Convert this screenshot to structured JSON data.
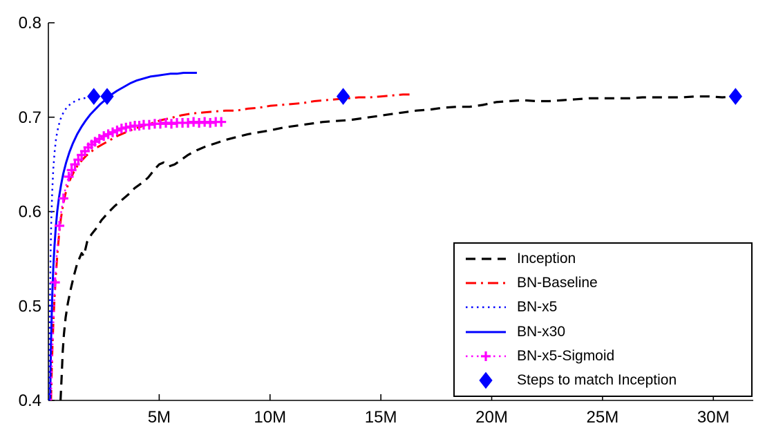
{
  "figure": {
    "background": "#ffffff",
    "axis_color": "#000000"
  },
  "chart_data": {
    "type": "line",
    "xlabel": "",
    "ylabel": "",
    "xlim": [
      0,
      31.8
    ],
    "ylim": [
      0.4,
      0.8
    ],
    "grid": false,
    "legend_position": "bottom-right",
    "x_ticks": [
      {
        "value": 5,
        "label": "5M"
      },
      {
        "value": 10,
        "label": "10M"
      },
      {
        "value": 15,
        "label": "15M"
      },
      {
        "value": 20,
        "label": "20M"
      },
      {
        "value": 25,
        "label": "25M"
      },
      {
        "value": 30,
        "label": "30M"
      }
    ],
    "y_ticks": [
      {
        "value": 0.4,
        "label": "0.4"
      },
      {
        "value": 0.5,
        "label": "0.5"
      },
      {
        "value": 0.6,
        "label": "0.6"
      },
      {
        "value": 0.7,
        "label": "0.7"
      },
      {
        "value": 0.8,
        "label": "0.8"
      }
    ],
    "series": [
      {
        "name": "Inception",
        "color": "#000000",
        "style": "dashed",
        "width": 3.2,
        "marker": "none",
        "points": [
          [
            0.55,
            0.4
          ],
          [
            0.6,
            0.425
          ],
          [
            0.65,
            0.452
          ],
          [
            0.7,
            0.47
          ],
          [
            0.78,
            0.488
          ],
          [
            0.88,
            0.503
          ],
          [
            1.0,
            0.517
          ],
          [
            1.15,
            0.532
          ],
          [
            1.3,
            0.545
          ],
          [
            1.5,
            0.556
          ],
          [
            1.6,
            0.553
          ],
          [
            1.75,
            0.568
          ],
          [
            1.95,
            0.576
          ],
          [
            2.15,
            0.582
          ],
          [
            2.4,
            0.591
          ],
          [
            2.7,
            0.599
          ],
          [
            3.0,
            0.606
          ],
          [
            3.3,
            0.612
          ],
          [
            3.6,
            0.618
          ],
          [
            3.9,
            0.625
          ],
          [
            4.2,
            0.63
          ],
          [
            4.5,
            0.636
          ],
          [
            4.8,
            0.645
          ],
          [
            5.0,
            0.65
          ],
          [
            5.2,
            0.652
          ],
          [
            5.45,
            0.648
          ],
          [
            5.7,
            0.65
          ],
          [
            6.0,
            0.655
          ],
          [
            6.3,
            0.66
          ],
          [
            6.7,
            0.665
          ],
          [
            7.1,
            0.669
          ],
          [
            7.5,
            0.672
          ],
          [
            8.0,
            0.676
          ],
          [
            8.5,
            0.679
          ],
          [
            9.0,
            0.682
          ],
          [
            9.5,
            0.684
          ],
          [
            10.0,
            0.686
          ],
          [
            10.6,
            0.689
          ],
          [
            11.2,
            0.691
          ],
          [
            11.8,
            0.693
          ],
          [
            12.4,
            0.695
          ],
          [
            13.0,
            0.696
          ],
          [
            13.6,
            0.697
          ],
          [
            14.2,
            0.699
          ],
          [
            14.8,
            0.701
          ],
          [
            15.4,
            0.703
          ],
          [
            16.0,
            0.705
          ],
          [
            16.6,
            0.707
          ],
          [
            17.2,
            0.708
          ],
          [
            17.8,
            0.71
          ],
          [
            18.4,
            0.711
          ],
          [
            19.0,
            0.711
          ],
          [
            19.6,
            0.713
          ],
          [
            20.2,
            0.716
          ],
          [
            20.8,
            0.717
          ],
          [
            21.4,
            0.718
          ],
          [
            22.0,
            0.717
          ],
          [
            22.6,
            0.717
          ],
          [
            23.2,
            0.718
          ],
          [
            23.8,
            0.719
          ],
          [
            24.4,
            0.72
          ],
          [
            25.0,
            0.72
          ],
          [
            25.6,
            0.72
          ],
          [
            26.2,
            0.72
          ],
          [
            26.8,
            0.721
          ],
          [
            27.4,
            0.721
          ],
          [
            28.0,
            0.721
          ],
          [
            28.6,
            0.721
          ],
          [
            29.2,
            0.722
          ],
          [
            29.8,
            0.722
          ],
          [
            30.4,
            0.721
          ],
          [
            31.0,
            0.722
          ],
          [
            31.5,
            0.722
          ]
        ]
      },
      {
        "name": "BN-Baseline",
        "color": "#ff0000",
        "style": "dashdot",
        "width": 3.0,
        "marker": "none",
        "points": [
          [
            0.12,
            0.4
          ],
          [
            0.15,
            0.43
          ],
          [
            0.18,
            0.455
          ],
          [
            0.22,
            0.48
          ],
          [
            0.27,
            0.505
          ],
          [
            0.33,
            0.53
          ],
          [
            0.4,
            0.553
          ],
          [
            0.48,
            0.575
          ],
          [
            0.56,
            0.592
          ],
          [
            0.65,
            0.605
          ],
          [
            0.75,
            0.617
          ],
          [
            0.85,
            0.626
          ],
          [
            1.0,
            0.635
          ],
          [
            1.15,
            0.642
          ],
          [
            1.3,
            0.648
          ],
          [
            1.5,
            0.654
          ],
          [
            1.7,
            0.659
          ],
          [
            1.9,
            0.663
          ],
          [
            2.2,
            0.668
          ],
          [
            2.5,
            0.672
          ],
          [
            2.8,
            0.676
          ],
          [
            3.1,
            0.68
          ],
          [
            3.5,
            0.684
          ],
          [
            3.9,
            0.688
          ],
          [
            4.3,
            0.691
          ],
          [
            4.7,
            0.694
          ],
          [
            5.1,
            0.697
          ],
          [
            5.5,
            0.699
          ],
          [
            6.0,
            0.702
          ],
          [
            6.5,
            0.704
          ],
          [
            7.0,
            0.705
          ],
          [
            7.5,
            0.706
          ],
          [
            8.0,
            0.707
          ],
          [
            8.5,
            0.707
          ],
          [
            9.0,
            0.709
          ],
          [
            9.5,
            0.71
          ],
          [
            10.0,
            0.712
          ],
          [
            10.5,
            0.713
          ],
          [
            11.0,
            0.714
          ],
          [
            11.5,
            0.715
          ],
          [
            12.0,
            0.717
          ],
          [
            12.5,
            0.718
          ],
          [
            13.0,
            0.719
          ],
          [
            13.5,
            0.72
          ],
          [
            14.0,
            0.721
          ],
          [
            14.5,
            0.721
          ],
          [
            15.0,
            0.722
          ],
          [
            15.5,
            0.723
          ],
          [
            16.0,
            0.724
          ],
          [
            16.4,
            0.724
          ]
        ]
      },
      {
        "name": "BN-x5",
        "color": "#0000ff",
        "style": "dotted",
        "width": 2.5,
        "marker": "none",
        "points": [
          [
            0.04,
            0.4
          ],
          [
            0.05,
            0.44
          ],
          [
            0.06,
            0.48
          ],
          [
            0.08,
            0.52
          ],
          [
            0.1,
            0.555
          ],
          [
            0.13,
            0.59
          ],
          [
            0.17,
            0.62
          ],
          [
            0.22,
            0.645
          ],
          [
            0.28,
            0.663
          ],
          [
            0.35,
            0.678
          ],
          [
            0.45,
            0.69
          ],
          [
            0.55,
            0.698
          ],
          [
            0.68,
            0.705
          ],
          [
            0.82,
            0.71
          ],
          [
            1.0,
            0.714
          ],
          [
            1.2,
            0.717
          ],
          [
            1.4,
            0.719
          ],
          [
            1.6,
            0.72
          ],
          [
            1.8,
            0.721
          ],
          [
            2.0,
            0.722
          ],
          [
            2.2,
            0.723
          ]
        ]
      },
      {
        "name": "BN-x30",
        "color": "#0000ff",
        "style": "solid",
        "width": 3.0,
        "marker": "none",
        "points": [
          [
            0.08,
            0.4
          ],
          [
            0.1,
            0.43
          ],
          [
            0.12,
            0.46
          ],
          [
            0.15,
            0.49
          ],
          [
            0.18,
            0.515
          ],
          [
            0.22,
            0.54
          ],
          [
            0.27,
            0.562
          ],
          [
            0.33,
            0.582
          ],
          [
            0.4,
            0.6
          ],
          [
            0.48,
            0.615
          ],
          [
            0.57,
            0.628
          ],
          [
            0.67,
            0.64
          ],
          [
            0.8,
            0.652
          ],
          [
            0.95,
            0.663
          ],
          [
            1.1,
            0.672
          ],
          [
            1.3,
            0.682
          ],
          [
            1.5,
            0.69
          ],
          [
            1.7,
            0.697
          ],
          [
            1.9,
            0.703
          ],
          [
            2.1,
            0.708
          ],
          [
            2.35,
            0.714
          ],
          [
            2.6,
            0.719
          ],
          [
            2.85,
            0.724
          ],
          [
            3.1,
            0.728
          ],
          [
            3.4,
            0.732
          ],
          [
            3.7,
            0.736
          ],
          [
            4.0,
            0.739
          ],
          [
            4.3,
            0.741
          ],
          [
            4.6,
            0.743
          ],
          [
            4.9,
            0.744
          ],
          [
            5.2,
            0.745
          ],
          [
            5.5,
            0.746
          ],
          [
            5.8,
            0.746
          ],
          [
            6.1,
            0.747
          ],
          [
            6.4,
            0.747
          ],
          [
            6.7,
            0.747
          ]
        ]
      },
      {
        "name": "BN-x5-Sigmoid",
        "color": "#ff00ff",
        "style": "dotted",
        "width": 2.4,
        "marker": "plus",
        "points": [
          [
            0.12,
            0.4
          ],
          [
            0.15,
            0.43
          ],
          [
            0.18,
            0.455
          ],
          [
            0.22,
            0.478
          ],
          [
            0.26,
            0.5
          ],
          [
            0.3,
            0.525
          ],
          [
            0.36,
            0.548
          ],
          [
            0.42,
            0.566
          ],
          [
            0.5,
            0.585
          ],
          [
            0.58,
            0.6
          ],
          [
            0.68,
            0.614
          ],
          [
            0.8,
            0.628
          ],
          [
            0.92,
            0.637
          ],
          [
            1.05,
            0.644
          ],
          [
            1.2,
            0.65
          ],
          [
            1.35,
            0.655
          ],
          [
            1.5,
            0.66
          ],
          [
            1.65,
            0.664
          ],
          [
            1.8,
            0.668
          ],
          [
            1.95,
            0.671
          ],
          [
            2.1,
            0.674
          ],
          [
            2.3,
            0.677
          ],
          [
            2.5,
            0.68
          ],
          [
            2.7,
            0.682
          ],
          [
            2.9,
            0.684
          ],
          [
            3.1,
            0.686
          ],
          [
            3.3,
            0.688
          ],
          [
            3.5,
            0.689
          ],
          [
            3.7,
            0.69
          ],
          [
            3.9,
            0.691
          ],
          [
            4.1,
            0.691
          ],
          [
            4.3,
            0.692
          ],
          [
            4.55,
            0.692
          ],
          [
            4.8,
            0.693
          ],
          [
            5.05,
            0.693
          ],
          [
            5.3,
            0.694
          ],
          [
            5.55,
            0.693
          ],
          [
            5.8,
            0.694
          ],
          [
            6.05,
            0.694
          ],
          [
            6.3,
            0.694
          ],
          [
            6.55,
            0.695
          ],
          [
            6.8,
            0.694
          ],
          [
            7.05,
            0.695
          ],
          [
            7.3,
            0.694
          ],
          [
            7.55,
            0.695
          ],
          [
            7.8,
            0.695
          ]
        ],
        "marker_points": [
          [
            0.3,
            0.525
          ],
          [
            0.5,
            0.585
          ],
          [
            0.68,
            0.614
          ],
          [
            0.92,
            0.637
          ],
          [
            1.05,
            0.644
          ],
          [
            1.2,
            0.65
          ],
          [
            1.35,
            0.655
          ],
          [
            1.5,
            0.66
          ],
          [
            1.65,
            0.664
          ],
          [
            1.8,
            0.668
          ],
          [
            1.95,
            0.671
          ],
          [
            2.1,
            0.674
          ],
          [
            2.3,
            0.677
          ],
          [
            2.5,
            0.68
          ],
          [
            2.7,
            0.682
          ],
          [
            2.9,
            0.684
          ],
          [
            3.1,
            0.686
          ],
          [
            3.3,
            0.688
          ],
          [
            3.5,
            0.689
          ],
          [
            3.7,
            0.69
          ],
          [
            3.9,
            0.691
          ],
          [
            4.1,
            0.691
          ],
          [
            4.3,
            0.692
          ],
          [
            4.55,
            0.692
          ],
          [
            4.8,
            0.693
          ],
          [
            5.05,
            0.693
          ],
          [
            5.3,
            0.694
          ],
          [
            5.55,
            0.693
          ],
          [
            5.8,
            0.694
          ],
          [
            6.05,
            0.694
          ],
          [
            6.3,
            0.694
          ],
          [
            6.55,
            0.695
          ],
          [
            6.8,
            0.694
          ],
          [
            7.05,
            0.695
          ],
          [
            7.3,
            0.694
          ],
          [
            7.55,
            0.695
          ],
          [
            7.8,
            0.695
          ]
        ]
      },
      {
        "name": "Steps to match Inception",
        "color": "#0000ff",
        "style": "none",
        "width": 0,
        "marker": "diamond",
        "points": [
          [
            2.05,
            0.722
          ],
          [
            2.65,
            0.722
          ],
          [
            13.3,
            0.722
          ],
          [
            31.0,
            0.722
          ]
        ]
      }
    ]
  }
}
